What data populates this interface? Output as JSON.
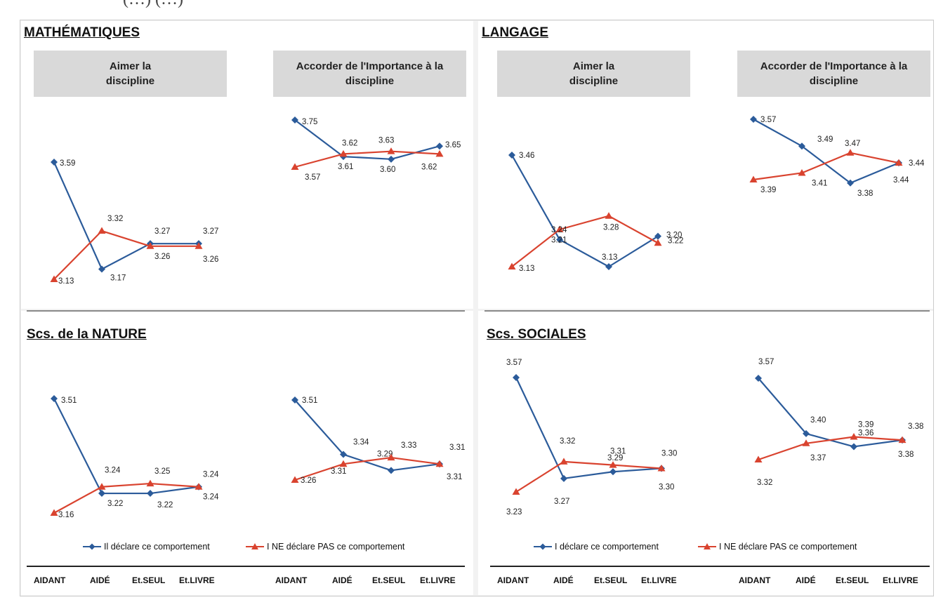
{
  "caption": "(…) (…)",
  "colors": {
    "blue": "#2b5b9a",
    "red": "#d9432f",
    "header_bg": "#d9d9d9"
  },
  "subjects": {
    "math": "MATHÉMATIQUES",
    "lang": "LANGAGE",
    "nat": "Scs. de la NATURE",
    "soc": "Scs. SOCIALES"
  },
  "headers": {
    "aimer": "Aimer la discipline",
    "importance": "Accorder de l'Importance à la discipline"
  },
  "legend": {
    "left": {
      "blue": "Il déclare ce comportement",
      "red": "I NE déclare PAS ce comportement"
    },
    "right": {
      "blue": "I déclare ce comportement",
      "red": "I NE déclare PAS ce comportement"
    }
  },
  "categories": [
    "AIDANT",
    "AIDÉ",
    "Et.SEUL",
    "Et.LIVRE"
  ],
  "chart_data": [
    {
      "type": "line",
      "title": "MATHÉMATIQUES — Aimer la discipline",
      "categories": [
        "AIDANT",
        "AIDÉ",
        "Et.SEUL",
        "Et.LIVRE"
      ],
      "series": [
        {
          "name": "Il déclare ce comportement",
          "values": [
            3.59,
            3.17,
            3.27,
            3.27
          ]
        },
        {
          "name": "I NE déclare PAS ce comportement",
          "values": [
            3.13,
            3.32,
            3.26,
            3.26
          ]
        }
      ]
    },
    {
      "type": "line",
      "title": "MATHÉMATIQUES — Accorder de l'Importance à la discipline",
      "categories": [
        "AIDANT",
        "AIDÉ",
        "Et.SEUL",
        "Et.LIVRE"
      ],
      "series": [
        {
          "name": "Il déclare ce comportement",
          "values": [
            3.75,
            3.61,
            3.6,
            3.65
          ]
        },
        {
          "name": "I NE déclare PAS ce comportement",
          "values": [
            3.57,
            3.62,
            3.63,
            3.62
          ]
        }
      ]
    },
    {
      "type": "line",
      "title": "LANGAGE — Aimer la discipline",
      "categories": [
        "AIDANT",
        "AIDÉ",
        "Et.SEUL",
        "Et.LIVRE"
      ],
      "series": [
        {
          "name": "I déclare ce comportement",
          "values": [
            3.46,
            3.21,
            3.13,
            3.22
          ]
        },
        {
          "name": "I NE déclare PAS ce comportement",
          "values": [
            3.13,
            3.24,
            3.28,
            3.2
          ]
        }
      ]
    },
    {
      "type": "line",
      "title": "LANGAGE — Accorder de l'Importance à la discipline",
      "categories": [
        "AIDANT",
        "AIDÉ",
        "Et.SEUL",
        "Et.LIVRE"
      ],
      "series": [
        {
          "name": "I déclare ce comportement",
          "values": [
            3.57,
            3.49,
            3.38,
            3.44
          ]
        },
        {
          "name": "I NE déclare PAS ce comportement",
          "values": [
            3.39,
            3.41,
            3.47,
            3.44
          ]
        }
      ]
    },
    {
      "type": "line",
      "title": "Scs. de la NATURE — Aimer la discipline",
      "categories": [
        "AIDANT",
        "AIDÉ",
        "Et.SEUL",
        "Et.LIVRE"
      ],
      "series": [
        {
          "name": "Il déclare ce comportement",
          "values": [
            3.51,
            3.22,
            3.22,
            3.24
          ]
        },
        {
          "name": "I NE déclare PAS ce comportement",
          "values": [
            3.16,
            3.24,
            3.25,
            3.24
          ]
        }
      ]
    },
    {
      "type": "line",
      "title": "Scs. de la NATURE — Accorder de l'Importance à la discipline",
      "categories": [
        "AIDANT",
        "AIDÉ",
        "Et.SEUL",
        "Et.LIVRE"
      ],
      "series": [
        {
          "name": "Il déclare ce comportement",
          "values": [
            3.51,
            3.34,
            3.29,
            3.31
          ]
        },
        {
          "name": "I NE déclare PAS ce comportement",
          "values": [
            3.26,
            3.31,
            3.33,
            3.31
          ]
        }
      ]
    },
    {
      "type": "line",
      "title": "Scs. SOCIALES — Aimer la discipline",
      "categories": [
        "AIDANT",
        "AIDÉ",
        "Et.SEUL",
        "Et.LIVRE"
      ],
      "series": [
        {
          "name": "I déclare ce comportement",
          "values": [
            3.57,
            3.27,
            3.29,
            3.3
          ]
        },
        {
          "name": "I NE déclare PAS ce comportement",
          "values": [
            3.23,
            3.32,
            3.31,
            3.3
          ]
        }
      ]
    },
    {
      "type": "line",
      "title": "Scs. SOCIALES — Accorder de l'Importance à la discipline",
      "categories": [
        "AIDANT",
        "AIDÉ",
        "Et.SEUL",
        "Et.LIVRE"
      ],
      "series": [
        {
          "name": "I déclare ce comportement",
          "values": [
            3.57,
            3.4,
            3.36,
            3.38
          ]
        },
        {
          "name": "I NE déclare PAS ce comportement",
          "values": [
            3.32,
            3.37,
            3.39,
            3.38
          ]
        }
      ]
    }
  ]
}
